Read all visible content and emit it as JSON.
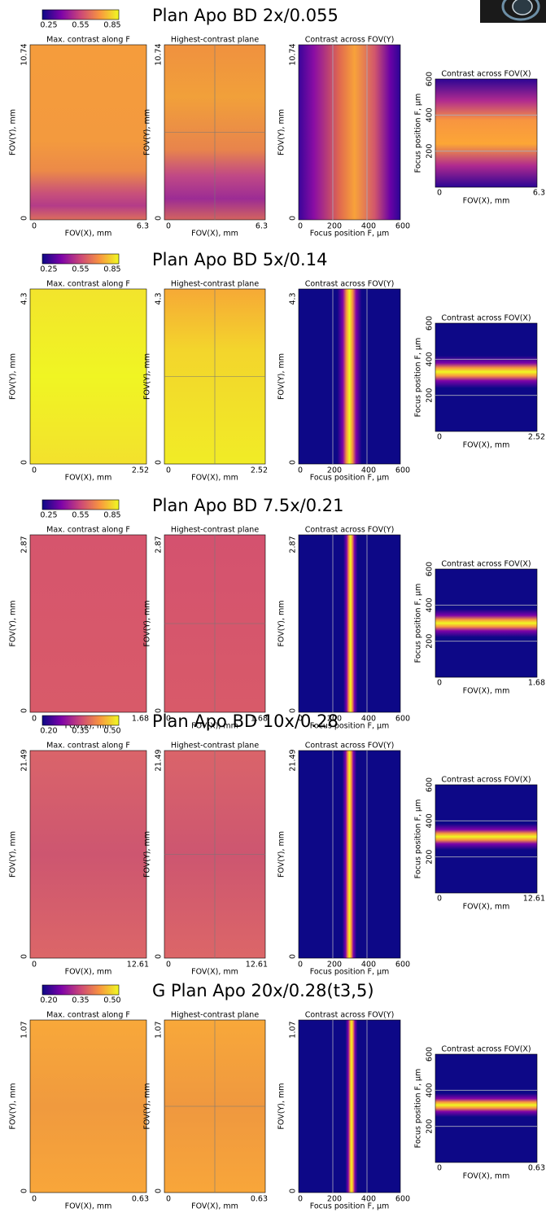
{
  "sections": [
    {
      "title": "Plan Apo BD 2x/0.055",
      "colorbar_ticks": [
        "0.25",
        "0.55",
        "0.85"
      ],
      "panel_titles": [
        "Max. contrast along F",
        "Highest-contrast plane",
        "Contrast across FOV(Y)",
        "Contrast across FOV(X)"
      ],
      "y_label": "FOV(Y), mm",
      "x_label": "FOV(X), mm",
      "focus_label": "Focus position F, μm",
      "y_ticks": [
        "0",
        "10.74"
      ],
      "x_ticks": [
        "0",
        "6.3"
      ],
      "focus_ticks": [
        "0",
        "200",
        "400",
        "600"
      ]
    },
    {
      "title": "Plan Apo BD 5x/0.14",
      "colorbar_ticks": [
        "0.25",
        "0.55",
        "0.85"
      ],
      "panel_titles": [
        "Max. contrast along F",
        "Highest-contrast plane",
        "Contrast across FOV(Y)",
        "Contrast across FOV(X)"
      ],
      "y_label": "FOV(Y), mm",
      "x_label": "FOV(X), mm",
      "focus_label": "Focus position F, μm",
      "y_ticks": [
        "0",
        "4.3"
      ],
      "x_ticks": [
        "0",
        "2.52"
      ],
      "focus_ticks": [
        "0",
        "200",
        "400",
        "600"
      ]
    },
    {
      "title": "Plan Apo BD 7.5x/0.21",
      "colorbar_ticks": [
        "0.25",
        "0.55",
        "0.85"
      ],
      "panel_titles": [
        "Max. contrast along F",
        "Highest-contrast plane",
        "Contrast across FOV(Y)",
        "Contrast across FOV(X)"
      ],
      "y_label": "FOV(Y), mm",
      "x_label": "FOV(X), mm",
      "focus_label": "Focus position F, μm",
      "y_ticks": [
        "0",
        "2.87"
      ],
      "x_ticks": [
        "0",
        "1.68"
      ],
      "focus_ticks": [
        "0",
        "200",
        "400",
        "600"
      ]
    },
    {
      "title": "Plan Apo BD 10x/0.28",
      "colorbar_ticks": [
        "0.20",
        "0.35",
        "0.50"
      ],
      "panel_titles": [
        "Max. contrast along F",
        "Highest-contrast plane",
        "Contrast across FOV(Y)",
        "Contrast across FOV(X)"
      ],
      "y_label": "FOV(Y), mm",
      "x_label": "FOV(X), mm",
      "focus_label": "Focus position F, μm",
      "y_ticks": [
        "0",
        "21.49"
      ],
      "x_ticks": [
        "0",
        "12.61"
      ],
      "focus_ticks": [
        "0",
        "200",
        "400",
        "600"
      ]
    },
    {
      "title": "G Plan Apo 20x/0.28(t3,5)",
      "colorbar_ticks": [
        "0.20",
        "0.35",
        "0.50"
      ],
      "panel_titles": [
        "Max. contrast along F",
        "Highest-contrast plane",
        "Contrast across FOV(Y)",
        "Contrast across FOV(X)"
      ],
      "y_label": "FOV(Y), mm",
      "x_label": "FOV(X), mm",
      "focus_label": "Focus position F, μm",
      "y_ticks": [
        "0",
        "1.07"
      ],
      "x_ticks": [
        "0",
        "0.63"
      ],
      "focus_ticks": [
        "0",
        "200",
        "400",
        "600"
      ]
    }
  ]
}
